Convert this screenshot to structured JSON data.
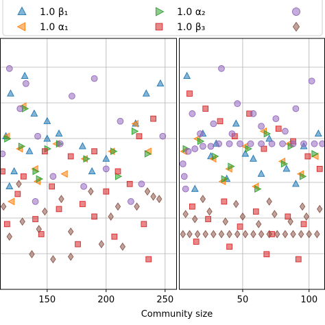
{
  "chart_data": [
    {
      "type": "scatter",
      "panel": "left",
      "xlim": [
        110,
        260
      ],
      "ylim": [
        0,
        1
      ],
      "grid": true,
      "xticks": [
        150,
        200,
        250
      ],
      "tick_labels": [
        "150",
        "200",
        "250"
      ],
      "series": [
        {
          "name": "1.0 β₁",
          "marker": "triangle",
          "color": "#1f77b4",
          "points": [
            [
              131,
              0.85
            ],
            [
              119,
              0.78
            ],
            [
              139,
              0.7
            ],
            [
              150,
              0.67
            ],
            [
              115,
              0.61
            ],
            [
              135,
              0.55
            ],
            [
              122,
              0.47
            ],
            [
              160,
              0.62
            ],
            [
              180,
              0.57
            ],
            [
              188,
              0.47
            ],
            [
              200,
              0.52
            ],
            [
              234,
              0.78
            ],
            [
              225,
              0.66
            ],
            [
              246,
              0.82
            ],
            [
              150,
              0.6
            ],
            [
              118,
              0.41
            ]
          ]
        },
        {
          "name": "1.0 α₁",
          "marker": "triangle-left",
          "color": "#ff7f0e",
          "points": [
            [
              130,
              0.73
            ],
            [
              127,
              0.56
            ],
            [
              116,
              0.61
            ],
            [
              142,
              0.43
            ],
            [
              158,
              0.58
            ],
            [
              182,
              0.52
            ],
            [
              205,
              0.55
            ],
            [
              236,
              0.55
            ],
            [
              225,
              0.66
            ],
            [
              140,
              0.48
            ],
            [
              120,
              0.35
            ],
            [
              165,
              0.46
            ]
          ]
        },
        {
          "name": "1.0 α₂",
          "marker": "triangle-right",
          "color": "#2ca02c",
          "points": [
            [
              131,
              0.72
            ],
            [
              128,
              0.57
            ],
            [
              116,
              0.6
            ],
            [
              143,
              0.44
            ],
            [
              160,
              0.58
            ],
            [
              183,
              0.52
            ],
            [
              206,
              0.55
            ],
            [
              224,
              0.63
            ],
            [
              150,
              0.56
            ],
            [
              235,
              0.54
            ],
            [
              210,
              0.45
            ],
            [
              140,
              0.47
            ]
          ]
        },
        {
          "name": "1.0 β₃",
          "marker": "square",
          "color": "#d62728",
          "points": [
            [
              112,
              0.47
            ],
            [
              130,
              0.45
            ],
            [
              148,
              0.55
            ],
            [
              170,
              0.53
            ],
            [
              190,
              0.55
            ],
            [
              210,
              0.47
            ],
            [
              228,
              0.61
            ],
            [
              240,
              0.68
            ],
            [
              116,
              0.26
            ],
            [
              140,
              0.28
            ],
            [
              160,
              0.32
            ],
            [
              180,
              0.34
            ],
            [
              200,
              0.39
            ],
            [
              220,
              0.42
            ],
            [
              125,
              0.38
            ],
            [
              145,
              0.22
            ],
            [
              176,
              0.18
            ],
            [
              207,
              0.21
            ],
            [
              232,
              0.26
            ],
            [
              154,
              0.41
            ],
            [
              190,
              0.29
            ],
            [
              236,
              0.12
            ]
          ]
        },
        {
          "name": "",
          "marker": "circle",
          "color": "#9467bd",
          "points": [
            [
              118,
              0.88
            ],
            [
              127,
              0.72
            ],
            [
              142,
              0.61
            ],
            [
              161,
              0.58
            ],
            [
              190,
              0.84
            ],
            [
              212,
              0.67
            ],
            [
              230,
              0.42
            ],
            [
              248,
              0.61
            ],
            [
              112,
              0.54
            ],
            [
              140,
              0.35
            ],
            [
              155,
              0.45
            ],
            [
              181,
              0.41
            ],
            [
              200,
              0.48
            ],
            [
              221,
              0.35
            ],
            [
              132,
              0.82
            ],
            [
              171,
              0.77
            ]
          ]
        },
        {
          "name": "",
          "marker": "diamond",
          "color": "#8c564b",
          "points": [
            [
              113,
              0.33
            ],
            [
              129,
              0.27
            ],
            [
              148,
              0.31
            ],
            [
              170,
              0.23
            ],
            [
              187,
              0.39
            ],
            [
              204,
              0.29
            ],
            [
              226,
              0.33
            ],
            [
              240,
              0.37
            ],
            [
              118,
              0.21
            ],
            [
              137,
              0.14
            ],
            [
              155,
              0.12
            ],
            [
              170,
              0.13
            ],
            [
              196,
              0.18
            ],
            [
              214,
              0.17
            ],
            [
              235,
              0.39
            ],
            [
              126,
              0.42
            ],
            [
              162,
              0.36
            ],
            [
              210,
              0.33
            ],
            [
              245,
              0.36
            ],
            [
              143,
              0.24
            ]
          ]
        }
      ]
    },
    {
      "type": "scatter",
      "panel": "right",
      "xlim": [
        2,
        112
      ],
      "ylim": [
        0,
        1
      ],
      "grid": true,
      "xticks": [
        50,
        100
      ],
      "tick_labels": [
        "50",
        "100"
      ],
      "series": [
        {
          "name": "1.0 β₁",
          "marker": "triangle",
          "color": "#1f77b4",
          "points": [
            [
              8,
              0.85
            ],
            [
              20,
              0.62
            ],
            [
              30,
              0.58
            ],
            [
              45,
              0.66
            ],
            [
              58,
              0.52
            ],
            [
              70,
              0.6
            ],
            [
              83,
              0.48
            ],
            [
              96,
              0.57
            ],
            [
              107,
              0.62
            ],
            [
              14,
              0.4
            ],
            [
              38,
              0.44
            ],
            [
              64,
              0.46
            ],
            [
              90,
              0.42
            ],
            [
              26,
              0.53
            ],
            [
              52,
              0.54
            ]
          ]
        },
        {
          "name": "1.0 α₁",
          "marker": "triangle-left",
          "color": "#ff7f0e",
          "points": [
            [
              6,
              0.55
            ],
            [
              16,
              0.6
            ],
            [
              28,
              0.52
            ],
            [
              40,
              0.48
            ],
            [
              52,
              0.57
            ],
            [
              66,
              0.63
            ],
            [
              80,
              0.51
            ],
            [
              94,
              0.46
            ],
            [
              105,
              0.53
            ],
            [
              35,
              0.43
            ],
            [
              60,
              0.41
            ],
            [
              85,
              0.58
            ]
          ]
        },
        {
          "name": "1.0 α₂",
          "marker": "triangle-right",
          "color": "#2ca02c",
          "points": [
            [
              7,
              0.56
            ],
            [
              18,
              0.59
            ],
            [
              29,
              0.53
            ],
            [
              41,
              0.49
            ],
            [
              54,
              0.56
            ],
            [
              68,
              0.62
            ],
            [
              81,
              0.5
            ],
            [
              95,
              0.45
            ],
            [
              104,
              0.54
            ],
            [
              36,
              0.44
            ],
            [
              61,
              0.4
            ],
            [
              86,
              0.57
            ]
          ]
        },
        {
          "name": "1.0 β₃",
          "marker": "square",
          "color": "#d62728",
          "points": [
            [
              10,
              0.78
            ],
            [
              22,
              0.72
            ],
            [
              33,
              0.67
            ],
            [
              44,
              0.61
            ],
            [
              55,
              0.7
            ],
            [
              66,
              0.56
            ],
            [
              77,
              0.64
            ],
            [
              88,
              0.59
            ],
            [
              99,
              0.53
            ],
            [
              108,
              0.48
            ],
            [
              12,
              0.33
            ],
            [
              24,
              0.28
            ],
            [
              36,
              0.35
            ],
            [
              48,
              0.25
            ],
            [
              60,
              0.31
            ],
            [
              72,
              0.22
            ],
            [
              84,
              0.29
            ],
            [
              96,
              0.26
            ],
            [
              15,
              0.19
            ],
            [
              40,
              0.17
            ],
            [
              68,
              0.14
            ],
            [
              92,
              0.12
            ]
          ]
        },
        {
          "name": "",
          "marker": "circle",
          "color": "#9467bd",
          "points": [
            [
              9,
              0.55
            ],
            [
              14,
              0.56
            ],
            [
              20,
              0.57
            ],
            [
              26,
              0.57
            ],
            [
              32,
              0.58
            ],
            [
              40,
              0.58
            ],
            [
              48,
              0.58
            ],
            [
              56,
              0.58
            ],
            [
              64,
              0.58
            ],
            [
              72,
              0.58
            ],
            [
              80,
              0.58
            ],
            [
              88,
              0.58
            ],
            [
              96,
              0.58
            ],
            [
              104,
              0.58
            ],
            [
              110,
              0.58
            ],
            [
              5,
              0.5
            ],
            [
              6,
              0.45
            ],
            [
              7,
              0.4
            ],
            [
              12,
              0.7
            ],
            [
              18,
              0.62
            ],
            [
              28,
              0.66
            ],
            [
              34,
              0.88
            ],
            [
              46,
              0.74
            ],
            [
              58,
              0.7
            ],
            [
              75,
              0.68
            ],
            [
              90,
              0.72
            ],
            [
              102,
              0.83
            ],
            [
              42,
              0.62
            ],
            [
              64,
              0.65
            ],
            [
              82,
              0.63
            ]
          ]
        },
        {
          "name": "",
          "marker": "diamond",
          "color": "#8c564b",
          "points": [
            [
              5,
              0.22
            ],
            [
              10,
              0.22
            ],
            [
              16,
              0.22
            ],
            [
              22,
              0.22
            ],
            [
              28,
              0.22
            ],
            [
              34,
              0.22
            ],
            [
              40,
              0.22
            ],
            [
              46,
              0.22
            ],
            [
              52,
              0.22
            ],
            [
              58,
              0.22
            ],
            [
              64,
              0.22
            ],
            [
              70,
              0.22
            ],
            [
              76,
              0.22
            ],
            [
              82,
              0.22
            ],
            [
              88,
              0.22
            ],
            [
              94,
              0.22
            ],
            [
              100,
              0.22
            ],
            [
              106,
              0.22
            ],
            [
              111,
              0.22
            ],
            [
              7,
              0.3
            ],
            [
              14,
              0.28
            ],
            [
              25,
              0.31
            ],
            [
              37,
              0.27
            ],
            [
              50,
              0.29
            ],
            [
              62,
              0.26
            ],
            [
              74,
              0.3
            ],
            [
              86,
              0.27
            ],
            [
              98,
              0.29
            ],
            [
              108,
              0.32
            ],
            [
              20,
              0.36
            ],
            [
              45,
              0.34
            ],
            [
              70,
              0.35
            ],
            [
              95,
              0.33
            ]
          ]
        }
      ]
    }
  ],
  "xlabel": "Community size",
  "legend": {
    "placement": "top",
    "entries": [
      {
        "label": "1.0 β₁",
        "marker": "triangle",
        "color": "#1f77b4"
      },
      {
        "label": "1.0 α₁",
        "marker": "triangle-left",
        "color": "#ff7f0e"
      },
      {
        "label": "1.0 α₂",
        "marker": "triangle-right",
        "color": "#2ca02c"
      },
      {
        "label": "1.0 β₃",
        "marker": "square",
        "color": "#d62728"
      },
      {
        "label": "",
        "marker": "circle",
        "color": "#9467bd"
      },
      {
        "label": "",
        "marker": "diamond",
        "color": "#8c564b"
      }
    ]
  }
}
